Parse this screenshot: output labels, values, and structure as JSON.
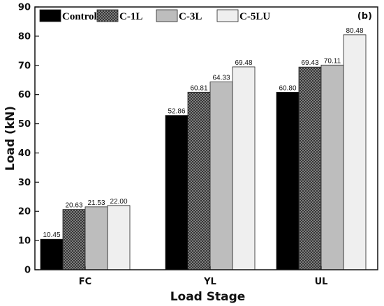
{
  "chart_data": {
    "type": "bar",
    "panel_label": "(b)",
    "categories": [
      "FC",
      "YL",
      "UL"
    ],
    "series": [
      {
        "name": "Control",
        "values": [
          10.45,
          52.86,
          60.8
        ],
        "color": "#000000",
        "pattern": "solid"
      },
      {
        "name": "C-1L",
        "values": [
          20.63,
          60.81,
          69.43
        ],
        "color": "#5a5a5a",
        "pattern": "crosshatch"
      },
      {
        "name": "C-3L",
        "values": [
          21.53,
          64.33,
          70.11
        ],
        "color": "#bdbdbd",
        "pattern": "solid"
      },
      {
        "name": "C-5LU",
        "values": [
          22.0,
          69.48,
          80.48
        ],
        "color": "#efefef",
        "pattern": "solid"
      }
    ],
    "xlabel": "Load Stage",
    "ylabel": "Load (kN)",
    "ylim": [
      0,
      90
    ],
    "yticks": [
      0,
      10,
      20,
      30,
      40,
      50,
      60,
      70,
      80,
      90
    ],
    "grid": false,
    "legend_position": "top-left"
  }
}
